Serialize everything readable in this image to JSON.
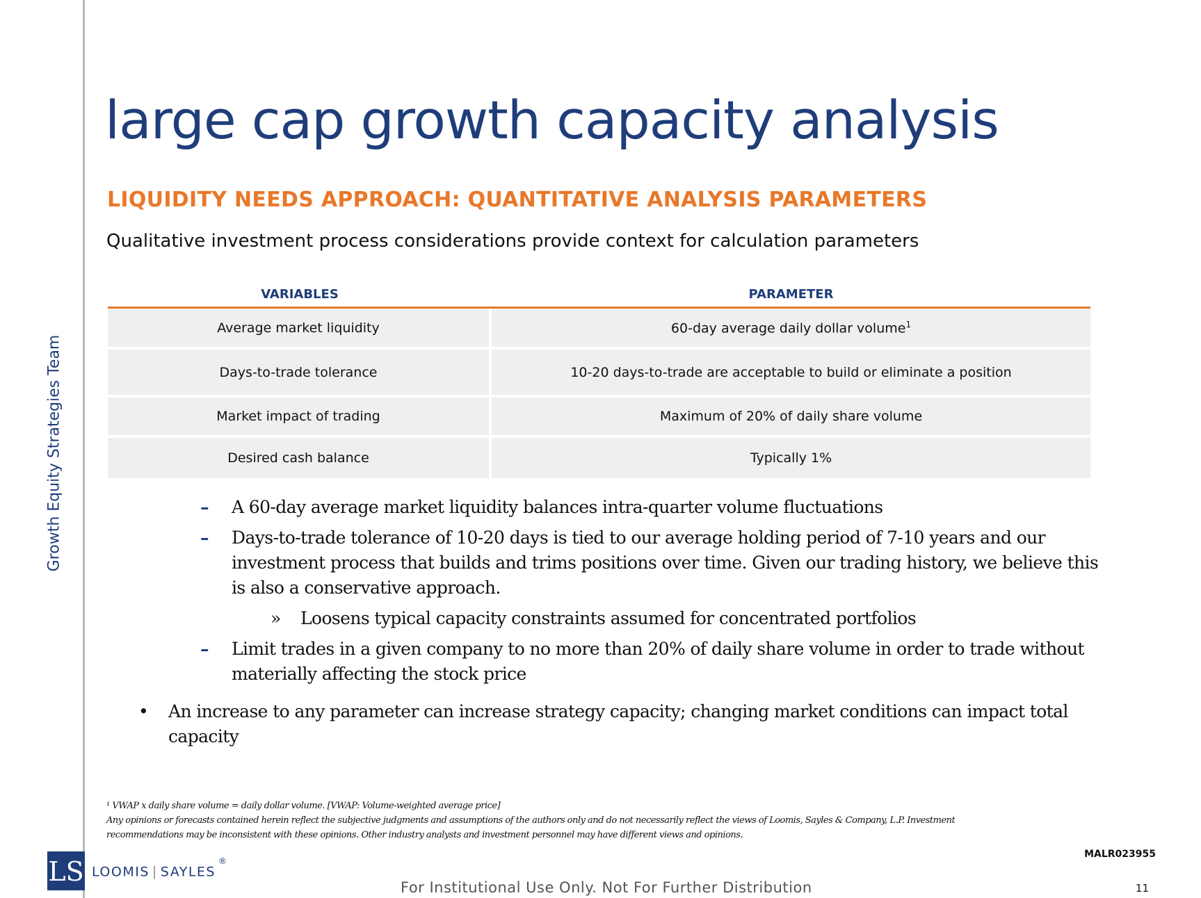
{
  "sidebar": {
    "team": "Growth Equity Strategies Team"
  },
  "header": {
    "title": "large cap growth capacity analysis",
    "subtitle": "LIQUIDITY NEEDS APPROACH:  QUANTITATIVE ANALYSIS PARAMETERS",
    "lead": "Qualitative investment process considerations provide context for calculation parameters"
  },
  "table": {
    "headers": [
      "VARIABLES",
      "PARAMETER"
    ],
    "rows": [
      {
        "variable": "Average market liquidity",
        "parameter": "60-day average daily dollar volume",
        "footnote_ref": "1"
      },
      {
        "variable": "Days-to-trade tolerance",
        "parameter": "10-20 days-to-trade are acceptable to build or eliminate a position"
      },
      {
        "variable": "Market impact of trading",
        "parameter": "Maximum of 20% of daily share volume"
      },
      {
        "variable": "Desired cash balance",
        "parameter": "Typically 1%"
      }
    ]
  },
  "bullets": {
    "markers": {
      "dash": "–",
      "sub": "»",
      "dot": "•"
    },
    "items": [
      "A 60-day average market liquidity balances intra-quarter volume fluctuations",
      "Days-to-trade tolerance of  10-20 days is tied to our average holding period of  7-10 years and our investment process that builds and trims positions over time.  Given our trading history, we believe this is also a conservative approach.",
      "Loosens typical capacity constraints assumed for concentrated portfolios",
      "Limit trades in a given company to no more than 20% of  daily share volume in order to trade without materially affecting the stock price",
      "An increase to any parameter can increase strategy capacity; changing market conditions can impact total capacity"
    ]
  },
  "footnotes": {
    "note1": "¹ VWAP x daily share volume = daily dollar volume.   [VWAP:  Volume-weighted average price]",
    "disclaimer": "Any opinions or forecasts contained herein reflect the subjective judgments and assumptions of the authors only and do not necessarily reflect the views of Loomis, Sayles & Company, L.P. Investment recommendations may be inconsistent with these opinions. Other industry analysts and investment personnel may have different views and opinions."
  },
  "footer": {
    "doc_id": "MALR023955",
    "logo": {
      "initials": "LS",
      "left": "LOOMIS",
      "sep": "|",
      "right": "SAYLES",
      "mark": "®"
    },
    "distribution": "For Institutional Use Only. Not For Further Distribution",
    "page_number": "11"
  },
  "colors": {
    "navy": "#1f3d7a",
    "orange": "#e8782a",
    "row_gray": "#efefef",
    "rule_gray": "#b9b9b9"
  }
}
